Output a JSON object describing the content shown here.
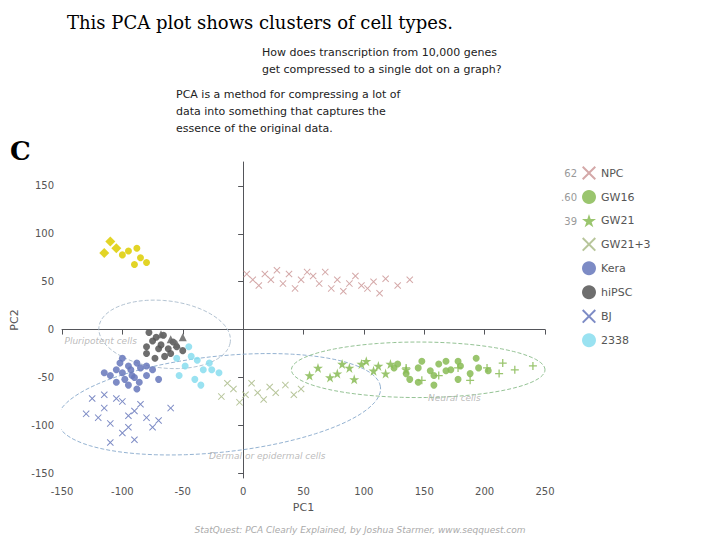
{
  "chart_data": {
    "type": "scatter",
    "title": "This PCA plot shows clusters of cell types.",
    "panel_label": "C",
    "text_boxes": [
      "How does transcription from 10,000 genes\nget compressed to a single dot on a graph?",
      "PCA is a method for compressing a lot of\ndata into something that captures the\nessence of the original data."
    ],
    "footer": "StatQuest: PCA Clearly Explained, by Joshua Starmer, www.seqquest.com",
    "xlabel": "PC1",
    "ylabel": "PC2",
    "xlim": [
      -150,
      250
    ],
    "ylim": [
      -155,
      175
    ],
    "xticks": [
      -150,
      -100,
      -50,
      0,
      50,
      100,
      150,
      200,
      250
    ],
    "yticks": [
      -150,
      -100,
      -50,
      0,
      50,
      100,
      150
    ],
    "grid": false,
    "legend": "right",
    "legend_entries": [
      {
        "number": "62",
        "name": "NPC"
      },
      {
        "number": ".60",
        "name": "GW16"
      },
      {
        "number": "39",
        "name": "GW21"
      },
      {
        "name": "GW21+3"
      },
      {
        "name": "Kera"
      },
      {
        "name": "hiPSC"
      },
      {
        "name": "BJ"
      },
      {
        "name": "2338"
      }
    ],
    "ellipses": [
      {
        "cx": -65,
        "cy": -5,
        "width": 110,
        "height": 70,
        "angle": -10,
        "color": "#aabbcc",
        "line_style": "dashed",
        "label": "Pluripotent cells",
        "label_x": -118,
        "label_y": -5
      },
      {
        "cx": -20,
        "cy": -78,
        "width": 270,
        "height": 100,
        "angle": 8,
        "color": "#88aacc",
        "line_style": "dashed",
        "label": "Dermal or epidermal cells",
        "label_x": 20,
        "label_y": -125
      },
      {
        "cx": 145,
        "cy": -42,
        "width": 210,
        "height": 58,
        "angle": 0,
        "color": "#88bb88",
        "line_style": "dashed",
        "label": "Neural cells",
        "label_x": 175,
        "label_y": -65
      }
    ],
    "series": [
      {
        "name": "hiPSC",
        "color": "#555555",
        "marker": "circle",
        "points": [
          [
            -75,
            -12
          ],
          [
            -70,
            -20
          ],
          [
            -80,
            -18
          ],
          [
            -65,
            -28
          ],
          [
            -72,
            -8
          ],
          [
            -68,
            -16
          ],
          [
            -78,
            -3
          ],
          [
            -62,
            -20
          ],
          [
            -58,
            -13
          ],
          [
            -73,
            -30
          ],
          [
            -80,
            -25
          ],
          [
            -66,
            -6
          ],
          [
            -60,
            -25
          ],
          [
            -55,
            -18
          ],
          [
            -50,
            -22
          ]
        ]
      },
      {
        "color": "#666666",
        "marker": "triangle",
        "points": [
          [
            -68,
            -5
          ],
          [
            -60,
            -10
          ],
          [
            -55,
            -15
          ],
          [
            -50,
            -8
          ]
        ]
      },
      {
        "name": "Kera",
        "color": "#6677bb",
        "marker": "circle",
        "points": [
          [
            -95,
            -38
          ],
          [
            -100,
            -45
          ],
          [
            -90,
            -50
          ],
          [
            -105,
            -42
          ],
          [
            -92,
            -48
          ],
          [
            -85,
            -40
          ],
          [
            -98,
            -52
          ],
          [
            -88,
            -35
          ],
          [
            -80,
            -48
          ],
          [
            -95,
            -58
          ],
          [
            -102,
            -35
          ],
          [
            -75,
            -42
          ],
          [
            -110,
            -48
          ],
          [
            -86,
            -55
          ],
          [
            -100,
            -30
          ],
          [
            -70,
            -52
          ],
          [
            -93,
            -42
          ],
          [
            -88,
            -62
          ],
          [
            -105,
            -55
          ],
          [
            -115,
            -45
          ],
          [
            -80,
            -38
          ]
        ]
      },
      {
        "name": "BJ",
        "color": "#6677bb",
        "marker": "x",
        "points": [
          [
            -100,
            -75
          ],
          [
            -115,
            -82
          ],
          [
            -95,
            -90
          ],
          [
            -110,
            -98
          ],
          [
            -90,
            -85
          ],
          [
            -105,
            -72
          ],
          [
            -120,
            -92
          ],
          [
            -85,
            -78
          ],
          [
            -100,
            -108
          ],
          [
            -115,
            -68
          ],
          [
            -80,
            -92
          ],
          [
            -95,
            -102
          ],
          [
            -75,
            -102
          ],
          [
            -125,
            -72
          ],
          [
            -60,
            -82
          ],
          [
            -130,
            -88
          ],
          [
            -90,
            -115
          ],
          [
            -70,
            -95
          ],
          [
            -110,
            -118
          ]
        ]
      },
      {
        "name": "2338",
        "color": "#88ddee",
        "marker": "circle",
        "points": [
          [
            -38,
            -32
          ],
          [
            -33,
            -42
          ],
          [
            -48,
            -38
          ],
          [
            -43,
            -28
          ],
          [
            -28,
            -35
          ],
          [
            -53,
            -48
          ],
          [
            -40,
            -52
          ],
          [
            -26,
            -42
          ],
          [
            -45,
            -18
          ],
          [
            -35,
            -58
          ],
          [
            -20,
            -45
          ],
          [
            -55,
            -30
          ]
        ]
      },
      {
        "name": "NPC",
        "color": "#cc9999",
        "marker": "x",
        "points": [
          [
            8,
            52
          ],
          [
            18,
            58
          ],
          [
            28,
            62
          ],
          [
            38,
            58
          ],
          [
            48,
            52
          ],
          [
            58,
            56
          ],
          [
            68,
            60
          ],
          [
            78,
            52
          ],
          [
            88,
            48
          ],
          [
            98,
            46
          ],
          [
            108,
            50
          ],
          [
            13,
            46
          ],
          [
            23,
            52
          ],
          [
            33,
            48
          ],
          [
            43,
            43
          ],
          [
            53,
            60
          ],
          [
            63,
            48
          ],
          [
            73,
            43
          ],
          [
            83,
            40
          ],
          [
            3,
            58
          ],
          [
            93,
            56
          ],
          [
            103,
            43
          ],
          [
            113,
            38
          ],
          [
            118,
            53
          ],
          [
            128,
            46
          ],
          [
            138,
            52
          ]
        ]
      },
      {
        "name": "GW16",
        "color": "#88bb55",
        "marker": "circle",
        "points": [
          [
            125,
            -40
          ],
          [
            135,
            -46
          ],
          [
            145,
            -40
          ],
          [
            155,
            -43
          ],
          [
            162,
            -36
          ],
          [
            172,
            -42
          ],
          [
            180,
            -38
          ],
          [
            138,
            -52
          ],
          [
            148,
            -33
          ],
          [
            158,
            -48
          ],
          [
            168,
            -43
          ],
          [
            178,
            -33
          ],
          [
            188,
            -46
          ],
          [
            195,
            -40
          ],
          [
            128,
            -36
          ],
          [
            203,
            -43
          ],
          [
            158,
            -58
          ],
          [
            168,
            -33
          ],
          [
            145,
            -55
          ],
          [
            178,
            -52
          ],
          [
            193,
            -30
          ]
        ]
      },
      {
        "name": "GW21",
        "color": "#88bb55",
        "marker": "star",
        "points": [
          [
            88,
            -40
          ],
          [
            98,
            -36
          ],
          [
            108,
            -43
          ],
          [
            78,
            -46
          ],
          [
            92,
            -52
          ],
          [
            102,
            -33
          ],
          [
            82,
            -36
          ],
          [
            112,
            -38
          ],
          [
            72,
            -50
          ],
          [
            118,
            -46
          ],
          [
            62,
            -40
          ],
          [
            122,
            -36
          ],
          [
            55,
            -48
          ],
          [
            135,
            -42
          ]
        ]
      },
      {
        "name": "GW21+3",
        "color": "#aabb88",
        "marker": "x",
        "points": [
          [
            -8,
            -62
          ],
          [
            2,
            -68
          ],
          [
            12,
            -66
          ],
          [
            -18,
            -70
          ],
          [
            22,
            -60
          ],
          [
            -3,
            -76
          ],
          [
            7,
            -56
          ],
          [
            -13,
            -56
          ],
          [
            17,
            -73
          ],
          [
            27,
            -66
          ],
          [
            35,
            -58
          ],
          [
            42,
            -68
          ],
          [
            48,
            -62
          ]
        ]
      },
      {
        "color": "#88bb55",
        "marker": "plus",
        "points": [
          [
            135,
            -40
          ],
          [
            148,
            -53
          ],
          [
            162,
            -48
          ],
          [
            178,
            -40
          ],
          [
            202,
            -40
          ],
          [
            212,
            -46
          ],
          [
            188,
            -53
          ],
          [
            225,
            -42
          ],
          [
            215,
            -35
          ],
          [
            240,
            -38
          ]
        ]
      },
      {
        "color": "#ddcc00",
        "marker": "diamond",
        "points": [
          [
            -110,
            92
          ],
          [
            -105,
            85
          ],
          [
            -115,
            80
          ]
        ]
      },
      {
        "color": "#ddcc00",
        "marker": "circle",
        "points": [
          [
            -85,
            75
          ],
          [
            -90,
            68
          ],
          [
            -95,
            82
          ],
          [
            -80,
            70
          ],
          [
            -100,
            78
          ],
          [
            -88,
            85
          ]
        ]
      }
    ]
  }
}
